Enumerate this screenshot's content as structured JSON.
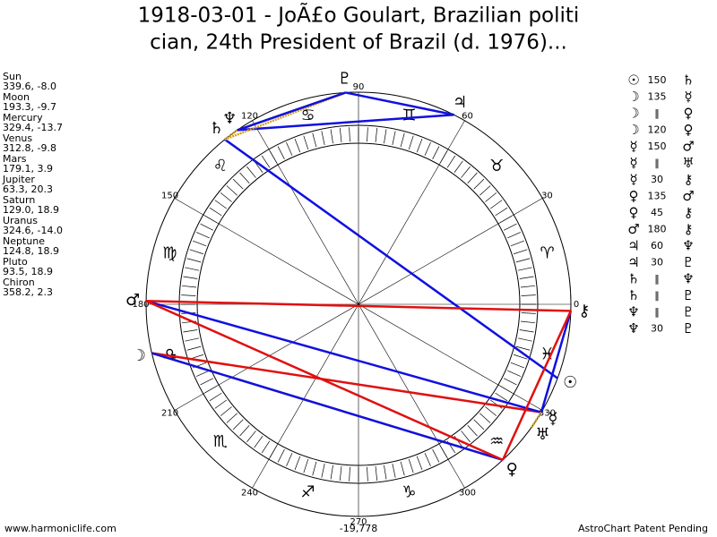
{
  "header": {
    "title_lines": [
      "1918-03-01 - JoÃ£o Goulart, Brazilian politi",
      "cian, 24th President of Brazil (d. 1976)..."
    ]
  },
  "planets": [
    {
      "name": "Sun",
      "glyph": "☉",
      "coords": "339.6, -8.0"
    },
    {
      "name": "Moon",
      "glyph": "☽",
      "coords": "193.3, -9.7"
    },
    {
      "name": "Mercury",
      "glyph": "☿",
      "coords": "329.4, -13.7"
    },
    {
      "name": "Venus",
      "glyph": "♀",
      "coords": "312.8, -9.8"
    },
    {
      "name": "Mars",
      "glyph": "♂",
      "coords": "179.1, 3.9"
    },
    {
      "name": "Jupiter",
      "glyph": "♃",
      "coords": "63.3, 20.3"
    },
    {
      "name": "Saturn",
      "glyph": "♄",
      "coords": "129.0, 18.9"
    },
    {
      "name": "Uranus",
      "glyph": "♅",
      "coords": "324.6, -14.0"
    },
    {
      "name": "Neptune",
      "glyph": "♆",
      "coords": "124.8, 18.9"
    },
    {
      "name": "Pluto",
      "glyph": "♇",
      "coords": "93.5, 18.9"
    },
    {
      "name": "Chiron",
      "glyph": "⚷",
      "coords": "358.2, 2.3"
    }
  ],
  "aspects": [
    {
      "from": "☉",
      "angle": "150",
      "to": "♄",
      "color": "#1010e0"
    },
    {
      "from": "☽",
      "angle": "135",
      "to": "☿",
      "color": "#e01010"
    },
    {
      "from": "☽",
      "angle": "‖",
      "to": "♀",
      "color": "#d4a020"
    },
    {
      "from": "☽",
      "angle": "120",
      "to": "♀",
      "color": "#1010e0"
    },
    {
      "from": "☿",
      "angle": "150",
      "to": "♂",
      "color": "#1010e0"
    },
    {
      "from": "☿",
      "angle": "‖",
      "to": "♅",
      "color": "#d4a020"
    },
    {
      "from": "☿",
      "angle": "30",
      "to": "⚷",
      "color": "#1010e0"
    },
    {
      "from": "♀",
      "angle": "135",
      "to": "♂",
      "color": "#e01010"
    },
    {
      "from": "♀",
      "angle": "45",
      "to": "⚷",
      "color": "#e01010"
    },
    {
      "from": "♂",
      "angle": "180",
      "to": "⚷",
      "color": "#e01010"
    },
    {
      "from": "♃",
      "angle": "60",
      "to": "♆",
      "color": "#1010e0"
    },
    {
      "from": "♃",
      "angle": "30",
      "to": "♇",
      "color": "#1010e0"
    },
    {
      "from": "♄",
      "angle": "‖",
      "to": "♆",
      "color": "#d4a020"
    },
    {
      "from": "♄",
      "angle": "‖",
      "to": "♇",
      "color": "#d4a020"
    },
    {
      "from": "♆",
      "angle": "‖",
      "to": "♇",
      "color": "#d4a020"
    },
    {
      "from": "♆",
      "angle": "30",
      "to": "♇",
      "color": "#1010e0"
    }
  ],
  "degree_labels": [
    0,
    30,
    60,
    90,
    120,
    150,
    180,
    210,
    240,
    270,
    300,
    330
  ],
  "zodiac": [
    "♈",
    "♉",
    "♊",
    "♋",
    "♌",
    "♍",
    "♎",
    "♏",
    "♐",
    "♑",
    "♒",
    "♓"
  ],
  "footer": {
    "site": "www.harmoniclife.com",
    "number": "-19,778",
    "notice": "AstroChart Patent Pending"
  }
}
